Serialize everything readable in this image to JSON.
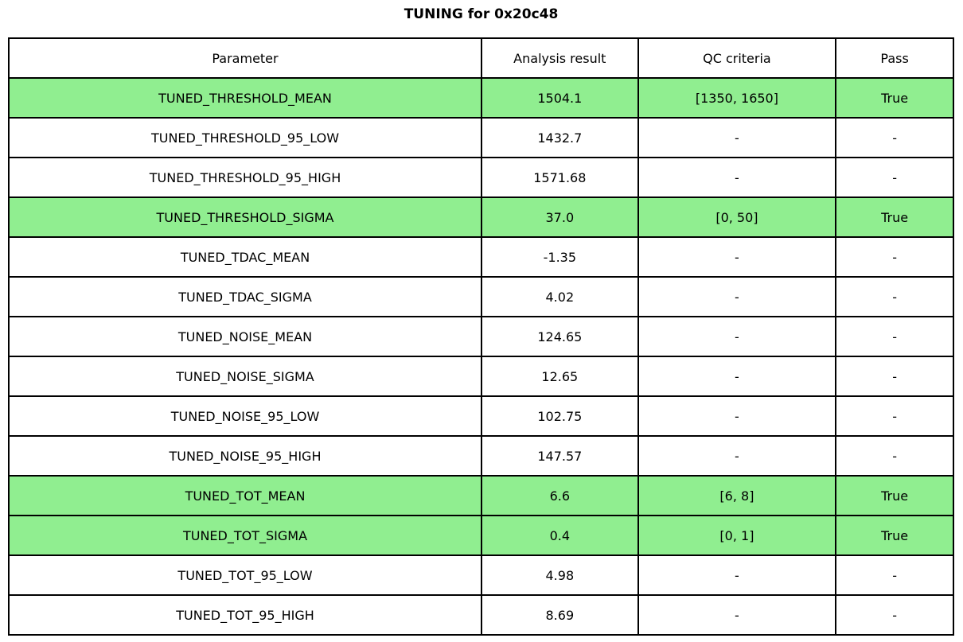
{
  "title": "TUNING for 0x20c48",
  "chart_data": {
    "type": "table",
    "title": "TUNING for 0x20c48",
    "columns": [
      "Parameter",
      "Analysis result",
      "QC criteria",
      "Pass"
    ],
    "rows": [
      {
        "parameter": "TUNED_THRESHOLD_MEAN",
        "result": "1504.1",
        "qc": "[1350, 1650]",
        "pass": "True",
        "highlight": true
      },
      {
        "parameter": "TUNED_THRESHOLD_95_LOW",
        "result": "1432.7",
        "qc": "-",
        "pass": "-",
        "highlight": false
      },
      {
        "parameter": "TUNED_THRESHOLD_95_HIGH",
        "result": "1571.68",
        "qc": "-",
        "pass": "-",
        "highlight": false
      },
      {
        "parameter": "TUNED_THRESHOLD_SIGMA",
        "result": "37.0",
        "qc": "[0, 50]",
        "pass": "True",
        "highlight": true
      },
      {
        "parameter": "TUNED_TDAC_MEAN",
        "result": "-1.35",
        "qc": "-",
        "pass": "-",
        "highlight": false
      },
      {
        "parameter": "TUNED_TDAC_SIGMA",
        "result": "4.02",
        "qc": "-",
        "pass": "-",
        "highlight": false
      },
      {
        "parameter": "TUNED_NOISE_MEAN",
        "result": "124.65",
        "qc": "-",
        "pass": "-",
        "highlight": false
      },
      {
        "parameter": "TUNED_NOISE_SIGMA",
        "result": "12.65",
        "qc": "-",
        "pass": "-",
        "highlight": false
      },
      {
        "parameter": "TUNED_NOISE_95_LOW",
        "result": "102.75",
        "qc": "-",
        "pass": "-",
        "highlight": false
      },
      {
        "parameter": "TUNED_NOISE_95_HIGH",
        "result": "147.57",
        "qc": "-",
        "pass": "-",
        "highlight": false
      },
      {
        "parameter": "TUNED_TOT_MEAN",
        "result": "6.6",
        "qc": "[6, 8]",
        "pass": "True",
        "highlight": true
      },
      {
        "parameter": "TUNED_TOT_SIGMA",
        "result": "0.4",
        "qc": "[0, 1]",
        "pass": "True",
        "highlight": true
      },
      {
        "parameter": "TUNED_TOT_95_LOW",
        "result": "4.98",
        "qc": "-",
        "pass": "-",
        "highlight": false
      },
      {
        "parameter": "TUNED_TOT_95_HIGH",
        "result": "8.69",
        "qc": "-",
        "pass": "-",
        "highlight": false
      }
    ],
    "highlighted_rows": [
      0,
      3,
      10,
      11
    ],
    "highlight_color": "#90EE90",
    "border_color": "#000000",
    "legend_position": "none",
    "grid": "full-cell-borders"
  }
}
